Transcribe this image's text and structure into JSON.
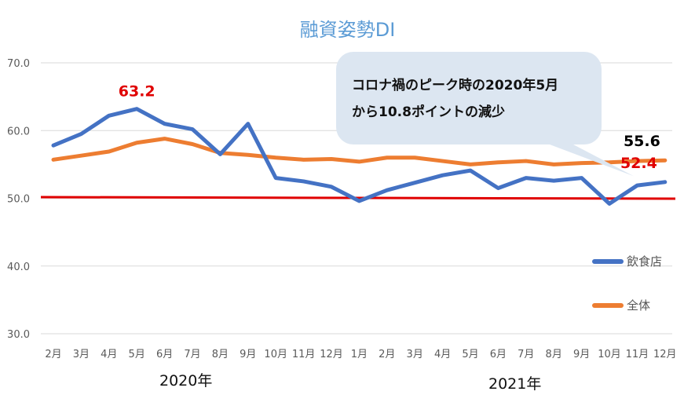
{
  "chart_data": {
    "type": "line",
    "title": "融資姿勢DI",
    "categories": [
      "2月",
      "3月",
      "4月",
      "5月",
      "6月",
      "7月",
      "8月",
      "9月",
      "10月",
      "11月",
      "12月",
      "1月",
      "2月",
      "3月",
      "4月",
      "5月",
      "6月",
      "7月",
      "8月",
      "9月",
      "10月",
      "11月",
      "12月"
    ],
    "year_labels": [
      "2020年",
      "2021年"
    ],
    "ylim": [
      30,
      70
    ],
    "yticks": [
      "30.0",
      "40.0",
      "50.0",
      "60.0",
      "70.0"
    ],
    "grid": true,
    "legend_position": "right",
    "reference_line": {
      "value": 50,
      "color": "#e00000"
    },
    "series": [
      {
        "name": "飲食店",
        "color": "#4472c4",
        "values": [
          57.8,
          59.5,
          62.2,
          63.2,
          61.0,
          60.2,
          56.5,
          61.0,
          53.0,
          52.5,
          51.7,
          49.6,
          51.2,
          52.3,
          53.4,
          54.1,
          51.5,
          53.0,
          52.6,
          53.0,
          49.2,
          51.9,
          52.4
        ]
      },
      {
        "name": "全体",
        "color": "#ed7d31",
        "values": [
          55.7,
          56.3,
          56.9,
          58.2,
          58.8,
          58.0,
          56.7,
          56.4,
          56.0,
          55.7,
          55.8,
          55.4,
          56.0,
          56.0,
          55.5,
          55.0,
          55.3,
          55.5,
          55.0,
          55.2,
          55.3,
          55.5,
          55.6
        ]
      }
    ],
    "annotations": [
      {
        "text": "63.2",
        "color": "#e00000"
      },
      {
        "text": "52.4",
        "color": "#e00000"
      },
      {
        "text": "55.6",
        "color": "#000000"
      }
    ],
    "callout": {
      "lines": [
        "コロナ禍のピーク時の2020年5月",
        "から10.8ポイントの減少"
      ],
      "background": "#dce6f1"
    }
  }
}
